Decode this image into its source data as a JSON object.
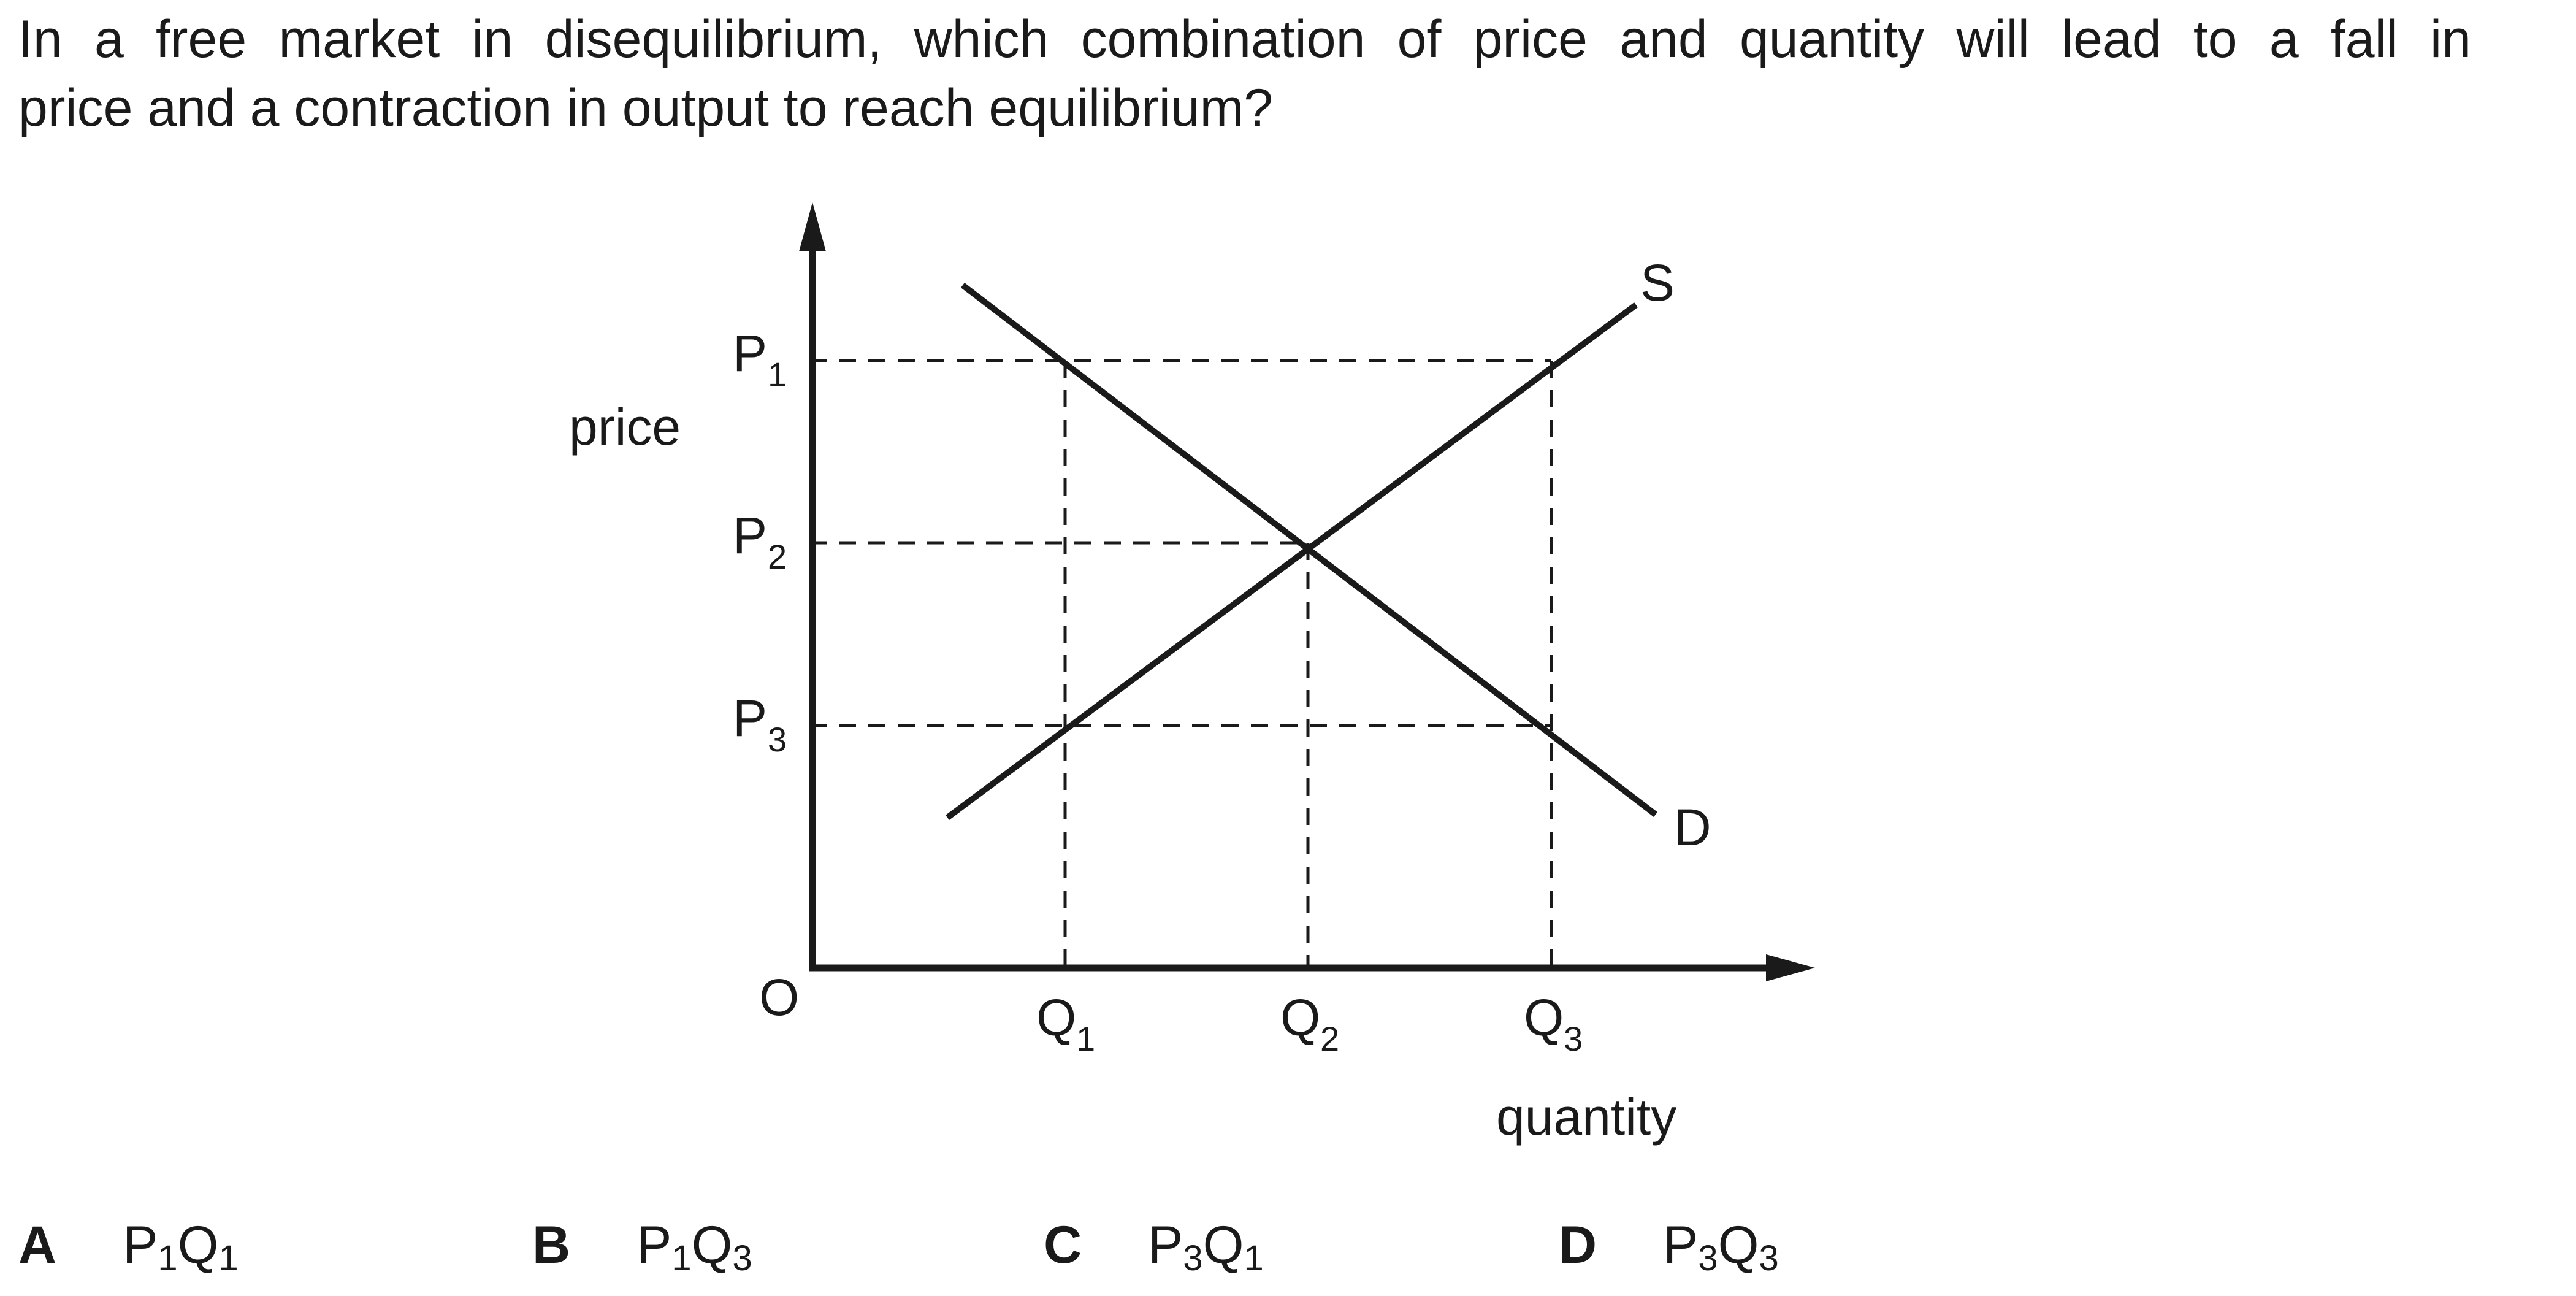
{
  "question": {
    "line1": "In a free market in disequilibrium, which combination of price and quantity will lead to a fall in",
    "line2": "price and a contraction in output to reach equilibrium?"
  },
  "diagram": {
    "y_axis_label": "price",
    "x_axis_label": "quantity",
    "origin_label": "O",
    "supply_label": "S",
    "demand_label": "D",
    "price_levels": [
      {
        "main": "P",
        "sub": "1"
      },
      {
        "main": "P",
        "sub": "2"
      },
      {
        "main": "P",
        "sub": "3"
      }
    ],
    "quantity_levels": [
      {
        "main": "Q",
        "sub": "1"
      },
      {
        "main": "Q",
        "sub": "2"
      },
      {
        "main": "Q",
        "sub": "3"
      }
    ]
  },
  "options": [
    {
      "letter": "A",
      "p_sub": "1",
      "q_sub": "1"
    },
    {
      "letter": "B",
      "p_sub": "1",
      "q_sub": "3"
    },
    {
      "letter": "C",
      "p_sub": "3",
      "q_sub": "1"
    },
    {
      "letter": "D",
      "p_sub": "3",
      "q_sub": "3"
    }
  ],
  "colors": {
    "ink": "#1a1a1a",
    "background": "#ffffff"
  }
}
